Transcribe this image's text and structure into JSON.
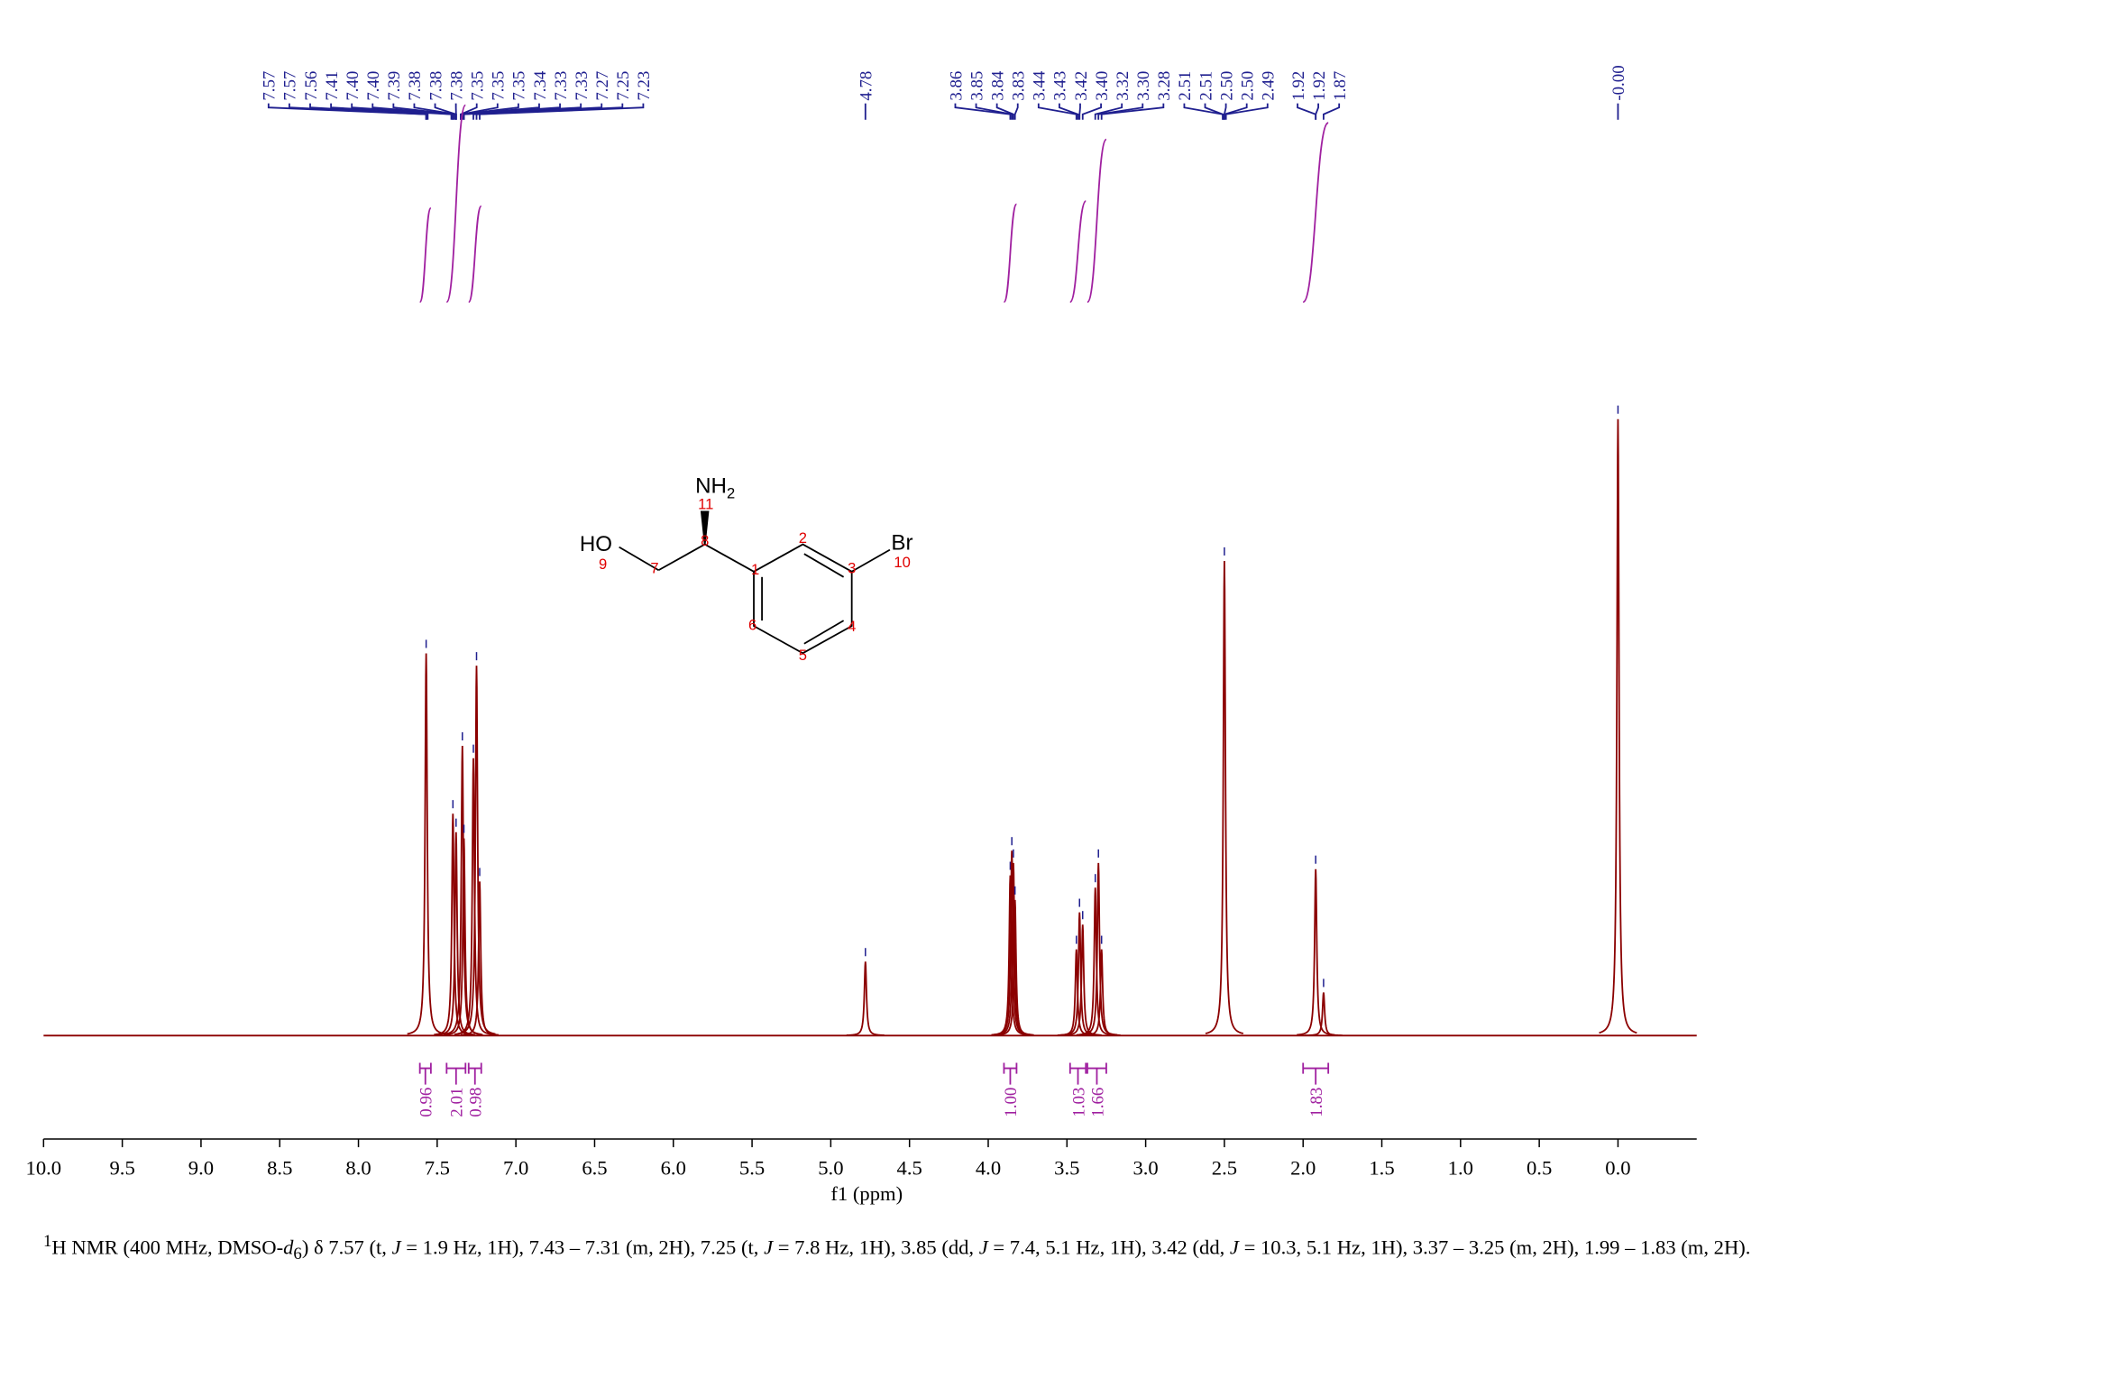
{
  "chart_data": {
    "type": "spectrum",
    "xlabel": "f1 (ppm)",
    "xlim": [
      10.0,
      -0.5
    ],
    "xticks": [
      {
        "value": 10.0,
        "label": "10.0"
      },
      {
        "value": 9.5,
        "label": "9.5"
      },
      {
        "value": 9.0,
        "label": "9.0"
      },
      {
        "value": 8.5,
        "label": "8.5"
      },
      {
        "value": 8.0,
        "label": "8.0"
      },
      {
        "value": 7.5,
        "label": "7.5"
      },
      {
        "value": 7.0,
        "label": "7.0"
      },
      {
        "value": 6.5,
        "label": "6.5"
      },
      {
        "value": 6.0,
        "label": "6.0"
      },
      {
        "value": 5.5,
        "label": "5.5"
      },
      {
        "value": 5.0,
        "label": "5.0"
      },
      {
        "value": 4.5,
        "label": "4.5"
      },
      {
        "value": 4.0,
        "label": "4.0"
      },
      {
        "value": 3.5,
        "label": "3.5"
      },
      {
        "value": 3.0,
        "label": "3.0"
      },
      {
        "value": 2.5,
        "label": "2.5"
      },
      {
        "value": 2.0,
        "label": "2.0"
      },
      {
        "value": 1.5,
        "label": "1.5"
      },
      {
        "value": 1.0,
        "label": "1.0"
      },
      {
        "value": 0.5,
        "label": "0.5"
      },
      {
        "value": 0.0,
        "label": "0.0"
      }
    ],
    "line_color": "#8b0000",
    "label_color": "#1f1f8f",
    "integral_color": "#a020a0",
    "peaks": {
      "ppm": [
        7.57,
        7.4,
        7.38,
        7.34,
        7.33,
        7.27,
        7.25,
        7.23,
        4.78,
        3.86,
        3.85,
        3.84,
        3.83,
        3.44,
        3.42,
        3.4,
        3.32,
        3.3,
        3.28,
        2.5,
        1.92,
        1.87,
        0.0
      ],
      "heights": [
        62,
        36,
        33,
        47,
        32,
        45,
        60,
        25,
        12,
        26,
        30,
        28,
        22,
        14,
        20,
        18,
        24,
        28,
        14,
        77,
        27,
        7,
        100
      ]
    },
    "peak_labels": [
      "7.57",
      "7.57",
      "7.56",
      "7.41",
      "7.40",
      "7.40",
      "7.39",
      "7.38",
      "7.38",
      "7.38",
      "7.35",
      "7.35",
      "7.35",
      "7.34",
      "7.33",
      "7.33",
      "7.27",
      "7.25",
      "7.23",
      "4.78",
      "3.86",
      "3.85",
      "3.84",
      "3.83",
      "3.44",
      "3.43",
      "3.42",
      "3.40",
      "3.32",
      "3.30",
      "3.28",
      "2.51",
      "2.51",
      "2.50",
      "2.50",
      "2.49",
      "1.92",
      "1.92",
      "1.87",
      "-0.00"
    ],
    "integrals": {
      "ranges": [
        [
          7.61,
          7.54
        ],
        [
          7.44,
          7.32
        ],
        [
          7.3,
          7.22
        ],
        [
          3.9,
          3.82
        ],
        [
          3.48,
          3.38
        ],
        [
          3.37,
          3.25
        ],
        [
          2.0,
          1.84
        ]
      ],
      "values": [
        0.96,
        2.01,
        0.98,
        1.0,
        1.03,
        1.66,
        1.83
      ],
      "value_labels": [
        "0.96",
        "2.01",
        "0.98",
        "1.00",
        "1.03",
        "1.66",
        "1.83"
      ]
    },
    "structure": {
      "hydroxyl": "HO",
      "amine": "NH",
      "amine_subscript": "2",
      "bromine": "Br",
      "atom_numbers": [
        1,
        2,
        3,
        4,
        5,
        6,
        7,
        8,
        9,
        10,
        11
      ]
    },
    "caption": [
      "1",
      "H NMR (400 MHz, DMSO-",
      "d",
      "6",
      ") δ 7.57 (t, ",
      "J",
      " = 1.9 Hz, 1H), 7.43 – 7.31 (m, 2H), 7.25 (t, ",
      "J",
      " = 7.8 Hz, 1H), 3.85 (dd, ",
      "J",
      " = 7.4, 5.1 Hz, 1H), 3.42 (dd, ",
      "J",
      " = 10.3, 5.1 Hz, 1H), 3.37 – 3.25 (m, 2H), 1.99 – 1.83 (m, 2H)."
    ]
  }
}
